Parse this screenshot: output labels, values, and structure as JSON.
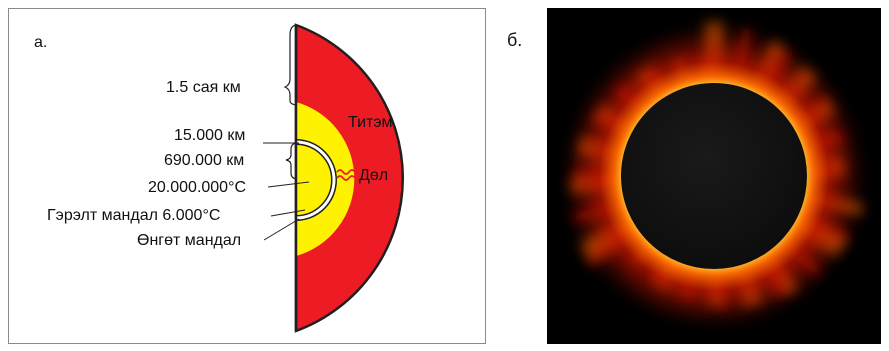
{
  "panel_a": {
    "letter": "а.",
    "labels": {
      "radius": "1.5 сая км",
      "corona": "Титэм",
      "photosphere_depth": "15.000 км",
      "convective_depth": "690.000 км",
      "core_temp": "20.000.000°C",
      "core": "Дөл",
      "chromosphere": "Гэрэлт мандал 6.000°C",
      "photosphere": "Өнгөт мандал"
    },
    "colors": {
      "outer": "#ed1c24",
      "inner": "#fff200",
      "outline": "#231f20",
      "wave": "#ed1c24"
    }
  },
  "panel_b": {
    "letter": "б.",
    "colors": {
      "background": "#000000",
      "disk": "#0d0d0d",
      "glow_inner": "#ffd23a",
      "glow_mid": "#ff6a00",
      "glow_outer": "#c81400"
    }
  }
}
